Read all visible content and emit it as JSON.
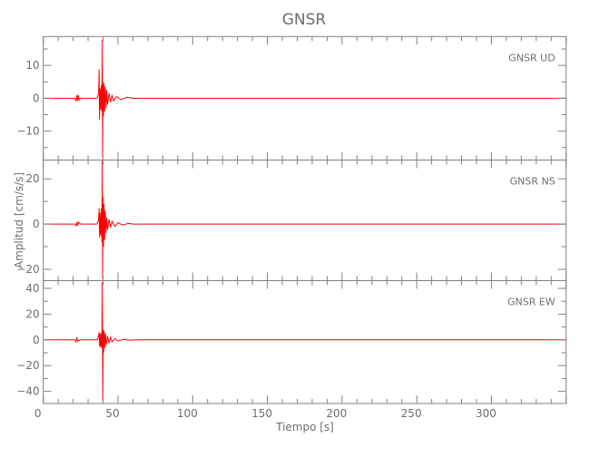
{
  "chart_data": {
    "type": "line",
    "title": "GNSR",
    "xlabel": "Tiempo [s]",
    "ylabel": "Amplitud [cm/s/s]",
    "xlim": [
      0,
      350
    ],
    "xticks": [
      0,
      50,
      100,
      150,
      200,
      250,
      300
    ],
    "grid": false,
    "line_color": "#ff0000",
    "axis_color": "#808080",
    "panels": [
      {
        "label": "GNSR   UD",
        "ylim": [
          -18.8,
          18.8
        ],
        "yticks": [
          -10,
          0,
          10
        ],
        "points": [
          [
            0,
            0
          ],
          [
            21,
            0
          ],
          [
            22,
            -0.8
          ],
          [
            22.5,
            0.9
          ],
          [
            23,
            -0.7
          ],
          [
            23.5,
            1.0
          ],
          [
            24,
            -0.5
          ],
          [
            25,
            0
          ],
          [
            36,
            0
          ],
          [
            37,
            1.5
          ],
          [
            37.4,
            8.8
          ],
          [
            37.6,
            -6.5
          ],
          [
            38,
            3
          ],
          [
            38.4,
            -3.5
          ],
          [
            38.8,
            4
          ],
          [
            39.2,
            -4
          ],
          [
            39.5,
            17.8
          ],
          [
            39.7,
            -17.8
          ],
          [
            40,
            5
          ],
          [
            40.3,
            -5.5
          ],
          [
            40.7,
            4.5
          ],
          [
            41,
            -4
          ],
          [
            41.5,
            3.5
          ],
          [
            42,
            -3
          ],
          [
            42.5,
            2.5
          ],
          [
            43,
            -2
          ],
          [
            44,
            1.5
          ],
          [
            45,
            -1.2
          ],
          [
            46,
            1
          ],
          [
            47,
            -0.8
          ],
          [
            49,
            0.5
          ],
          [
            52,
            -0.4
          ],
          [
            56,
            0.3
          ],
          [
            60,
            0
          ],
          [
            350,
            0
          ]
        ]
      },
      {
        "label": "GNSR   NS",
        "ylim": [
          -25,
          28.3
        ],
        "yticks": [
          -20,
          0,
          20
        ],
        "points": [
          [
            0,
            0
          ],
          [
            21,
            0
          ],
          [
            22,
            -0.8
          ],
          [
            22.5,
            0.9
          ],
          [
            23,
            -0.7
          ],
          [
            23.5,
            0.8
          ],
          [
            25,
            0
          ],
          [
            36,
            0
          ],
          [
            37,
            2
          ],
          [
            37.4,
            7
          ],
          [
            37.7,
            -6
          ],
          [
            38,
            5
          ],
          [
            38.4,
            -5
          ],
          [
            38.8,
            7
          ],
          [
            39.2,
            -8
          ],
          [
            39.5,
            28
          ],
          [
            39.7,
            -24
          ],
          [
            40,
            12
          ],
          [
            40.3,
            -10
          ],
          [
            40.7,
            9
          ],
          [
            41,
            -7
          ],
          [
            41.5,
            6
          ],
          [
            42,
            -4
          ],
          [
            42.5,
            3
          ],
          [
            43,
            -2.5
          ],
          [
            44,
            2
          ],
          [
            45,
            -1.5
          ],
          [
            46,
            1.2
          ],
          [
            48,
            -1
          ],
          [
            50,
            0.6
          ],
          [
            53,
            -0.4
          ],
          [
            57,
            0.3
          ],
          [
            60,
            0
          ],
          [
            350,
            0
          ]
        ]
      },
      {
        "label": "GNSR   EW",
        "ylim": [
          -49.4,
          46
        ],
        "yticks": [
          -40,
          -20,
          0,
          20,
          40
        ],
        "points": [
          [
            0,
            0
          ],
          [
            21,
            0
          ],
          [
            22,
            -1.5
          ],
          [
            22.5,
            2
          ],
          [
            23,
            -1
          ],
          [
            25,
            0
          ],
          [
            36,
            0
          ],
          [
            37,
            3
          ],
          [
            37.4,
            6
          ],
          [
            37.7,
            -5
          ],
          [
            38,
            5
          ],
          [
            38.4,
            -6
          ],
          [
            38.8,
            5
          ],
          [
            39.2,
            -6
          ],
          [
            39.5,
            45
          ],
          [
            39.8,
            -47
          ],
          [
            40.1,
            8
          ],
          [
            40.4,
            -10
          ],
          [
            40.8,
            7
          ],
          [
            41.2,
            -6
          ],
          [
            41.7,
            5
          ],
          [
            42.2,
            -4
          ],
          [
            43,
            3
          ],
          [
            44,
            -2.5
          ],
          [
            45,
            2
          ],
          [
            46,
            -1.5
          ],
          [
            48,
            1
          ],
          [
            50,
            -0.8
          ],
          [
            54,
            0.5
          ],
          [
            58,
            -0.3
          ],
          [
            62,
            0
          ],
          [
            350,
            0
          ]
        ]
      }
    ]
  }
}
